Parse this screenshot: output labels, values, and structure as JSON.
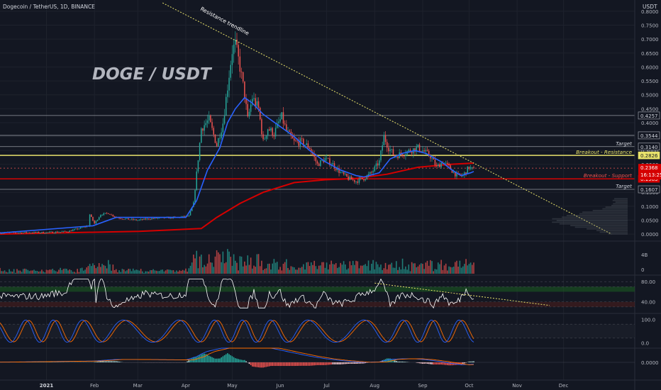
{
  "header": {
    "symbol_line": "Dogecoin / TetherUS, 1D, BINANCE",
    "currency": "USDT"
  },
  "overlay_title": "DOGE / USDT",
  "annotations": {
    "resistance_trendline": "Resistance trendline"
  },
  "colors": {
    "background": "#131722",
    "up": "#26a69a",
    "down": "#ef5350",
    "ema_fast": "#2962ff",
    "ema_slow": "#d50000",
    "trendline": "#e9e36b",
    "rsi": "#ffffff",
    "stoch_k": "#2962ff",
    "stoch_d": "#ff6d00",
    "green_band": "#1b5e20",
    "red_band": "#4a1c1c"
  },
  "chart_data": [
    {
      "type": "candlestick",
      "panel": "price",
      "ylim": [
        -0.02,
        0.82
      ],
      "y_ticks": [
        "0.8000",
        "0.7500",
        "0.7000",
        "0.6500",
        "0.6000",
        "0.5500",
        "0.5000",
        "0.4500",
        "0.4000",
        "0.3500",
        "0.3000",
        "0.2500",
        "0.2000",
        "0.1500",
        "0.1000",
        "0.0500",
        "0.0000"
      ],
      "y_tick_values": [
        0.8,
        0.75,
        0.7,
        0.65,
        0.6,
        0.55,
        0.5,
        0.45,
        0.4,
        0.35,
        0.3,
        0.25,
        0.2,
        0.15,
        0.1,
        0.05,
        0.0
      ],
      "x_ticks": [
        "2021",
        "Feb",
        "Mar",
        "Apr",
        "May",
        "Jun",
        "Jul",
        "Aug",
        "Sep",
        "Oct",
        "Nov",
        "Dec"
      ],
      "x_tick_days": [
        0,
        31,
        59,
        90,
        120,
        151,
        181,
        212,
        243,
        273,
        304,
        334
      ],
      "xlim_days": [
        -30,
        380
      ],
      "price_path": [
        [
          -30,
          0.0048
        ],
        [
          0,
          0.0057
        ],
        [
          14,
          0.0093
        ],
        [
          27,
          0.03
        ],
        [
          28,
          0.07
        ],
        [
          31,
          0.038
        ],
        [
          35,
          0.07
        ],
        [
          40,
          0.075
        ],
        [
          45,
          0.06
        ],
        [
          50,
          0.055
        ],
        [
          59,
          0.05
        ],
        [
          66,
          0.055
        ],
        [
          75,
          0.058
        ],
        [
          85,
          0.06
        ],
        [
          92,
          0.065
        ],
        [
          95,
          0.11
        ],
        [
          100,
          0.38
        ],
        [
          105,
          0.41
        ],
        [
          110,
          0.32
        ],
        [
          114,
          0.4
        ],
        [
          117,
          0.53
        ],
        [
          120,
          0.66
        ],
        [
          122,
          0.68
        ],
        [
          125,
          0.6
        ],
        [
          128,
          0.5
        ],
        [
          130,
          0.41
        ],
        [
          133,
          0.49
        ],
        [
          137,
          0.45
        ],
        [
          140,
          0.33
        ],
        [
          143,
          0.38
        ],
        [
          147,
          0.36
        ],
        [
          150,
          0.4
        ],
        [
          152,
          0.42
        ],
        [
          155,
          0.37
        ],
        [
          160,
          0.33
        ],
        [
          165,
          0.33
        ],
        [
          170,
          0.31
        ],
        [
          175,
          0.25
        ],
        [
          180,
          0.27
        ],
        [
          185,
          0.25
        ],
        [
          190,
          0.22
        ],
        [
          195,
          0.2
        ],
        [
          200,
          0.19
        ],
        [
          205,
          0.2
        ],
        [
          210,
          0.22
        ],
        [
          215,
          0.26
        ],
        [
          218,
          0.35
        ],
        [
          221,
          0.31
        ],
        [
          225,
          0.28
        ],
        [
          230,
          0.29
        ],
        [
          235,
          0.3
        ],
        [
          240,
          0.31
        ],
        [
          243,
          0.3
        ],
        [
          248,
          0.28
        ],
        [
          252,
          0.24
        ],
        [
          256,
          0.26
        ],
        [
          260,
          0.24
        ],
        [
          265,
          0.21
        ],
        [
          269,
          0.21
        ],
        [
          273,
          0.24
        ],
        [
          276,
          0.23
        ]
      ],
      "ema_fast_path": [
        [
          -30,
          0.004
        ],
        [
          30,
          0.03
        ],
        [
          45,
          0.06
        ],
        [
          90,
          0.06
        ],
        [
          97,
          0.12
        ],
        [
          104,
          0.23
        ],
        [
          112,
          0.31
        ],
        [
          117,
          0.4
        ],
        [
          122,
          0.45
        ],
        [
          128,
          0.49
        ],
        [
          133,
          0.47
        ],
        [
          140,
          0.43
        ],
        [
          150,
          0.39
        ],
        [
          160,
          0.35
        ],
        [
          170,
          0.3
        ],
        [
          180,
          0.26
        ],
        [
          190,
          0.23
        ],
        [
          200,
          0.21
        ],
        [
          205,
          0.205
        ],
        [
          215,
          0.22
        ],
        [
          222,
          0.27
        ],
        [
          230,
          0.29
        ],
        [
          238,
          0.3
        ],
        [
          245,
          0.29
        ],
        [
          255,
          0.26
        ],
        [
          262,
          0.23
        ],
        [
          268,
          0.21
        ],
        [
          274,
          0.22
        ],
        [
          276,
          0.225
        ]
      ],
      "ema_slow_path": [
        [
          -30,
          0.0
        ],
        [
          60,
          0.01
        ],
        [
          100,
          0.02
        ],
        [
          110,
          0.06
        ],
        [
          125,
          0.11
        ],
        [
          140,
          0.15
        ],
        [
          160,
          0.185
        ],
        [
          180,
          0.195
        ],
        [
          200,
          0.2
        ],
        [
          220,
          0.215
        ],
        [
          240,
          0.24
        ],
        [
          260,
          0.25
        ],
        [
          276,
          0.255
        ]
      ],
      "resistance_trendline": {
        "from": [
          75,
          0.83
        ],
        "to": [
          365,
          0.0
        ]
      },
      "levels": [
        {
          "value": 0.4257,
          "label": "",
          "badge": "0.4257",
          "color": "#9598a1"
        },
        {
          "value": 0.3544,
          "label": "",
          "badge": "0.3544",
          "color": "#9598a1"
        },
        {
          "value": 0.314,
          "label": "Target",
          "badge": "0.3140",
          "color": "#9598a1"
        },
        {
          "value": 0.2826,
          "label": "Breakout - Resistance",
          "badge": "0.2826",
          "color": "#e9e36b"
        },
        {
          "value": 0.1983,
          "label": "Breakout - Support",
          "badge": "0.1983",
          "color": "#d50000"
        },
        {
          "value": 0.1607,
          "label": "Target",
          "badge": "0.1607",
          "color": "#9598a1"
        }
      ],
      "current_price": {
        "value": 0.2368,
        "badge": "0.2368",
        "countdown": "16:13:25"
      }
    },
    {
      "type": "bar",
      "panel": "volume",
      "label": "4B",
      "ticks": [
        "4B",
        "0"
      ]
    },
    {
      "type": "line",
      "panel": "rsi",
      "ylim": [
        20,
        90
      ],
      "ticks": [
        "80.00",
        "40.00"
      ],
      "tick_values": [
        80,
        40
      ],
      "bands": [
        [
          60,
          70
        ],
        [
          30,
          40
        ]
      ]
    },
    {
      "type": "line",
      "panel": "stochastic",
      "ylim": [
        -20,
        120
      ],
      "ticks": [
        "100.0",
        "0.0"
      ],
      "tick_values": [
        100,
        0
      ]
    },
    {
      "type": "bar",
      "panel": "macd",
      "ticks": [
        "0.0000"
      ]
    }
  ]
}
